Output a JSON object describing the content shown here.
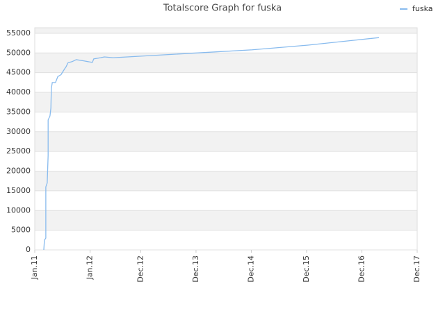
{
  "chart_data": {
    "type": "line",
    "title": "Totalscore Graph for fuska",
    "x": [
      1.96,
      2.1,
      2.4,
      2.4,
      2.7,
      2.9,
      2.9,
      3.3,
      3.5,
      3.6,
      3.8,
      4.5,
      5.0,
      5.7,
      6.5,
      6.8,
      7.2,
      8.1,
      9.0,
      10.6,
      12.5,
      12.8,
      14.3,
      15.1,
      17.0,
      20.1,
      35.1,
      47.2,
      59.3,
      74.7
    ],
    "series": [
      {
        "name": "fuska",
        "color": "#88bbee",
        "values": [
          0,
          2500,
          3000,
          16000,
          17000,
          24000,
          33000,
          34000,
          36000,
          41000,
          42500,
          42500,
          44000,
          44500,
          46000,
          46500,
          47500,
          47800,
          48300,
          48000,
          47600,
          48500,
          48800,
          49000,
          48800,
          49000,
          50000,
          50800,
          52000,
          53900
        ]
      }
    ],
    "xlim": [
      0,
      83
    ],
    "xticks": [
      {
        "value": 0,
        "label": "Jan.11"
      },
      {
        "value": 12,
        "label": "Jan.12"
      },
      {
        "value": 23,
        "label": "Dec.12"
      },
      {
        "value": 35,
        "label": "Dec.13"
      },
      {
        "value": 47,
        "label": "Dec.14"
      },
      {
        "value": 59,
        "label": "Dec.15"
      },
      {
        "value": 71,
        "label": "Dec.16"
      },
      {
        "value": 83,
        "label": "Dec.17"
      }
    ],
    "ylim": [
      0,
      56400
    ],
    "yticks": [
      0,
      5000,
      10000,
      15000,
      20000,
      25000,
      30000,
      35000,
      40000,
      45000,
      50000,
      55000
    ],
    "grid": true,
    "legend": "top-right"
  }
}
